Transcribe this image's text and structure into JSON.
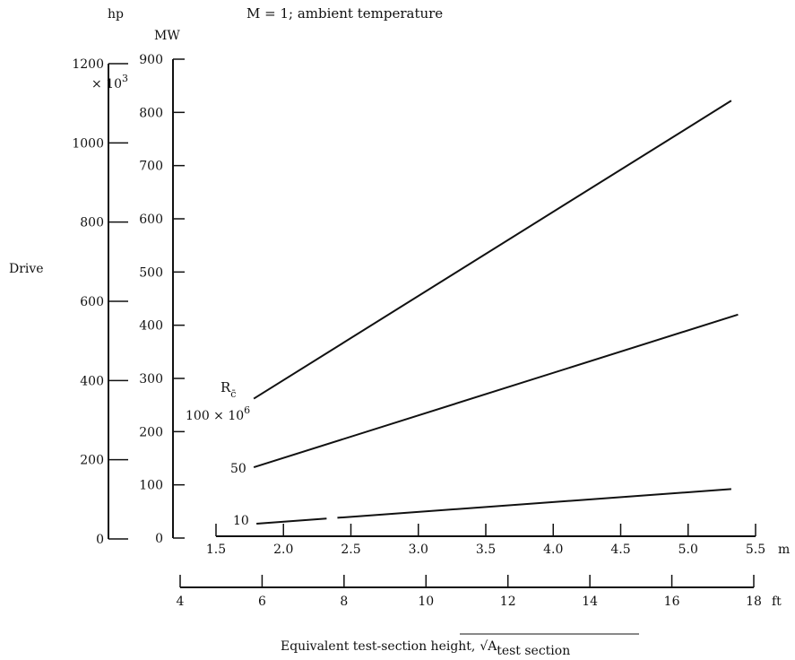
{
  "chart_data": {
    "type": "line",
    "title": "M = 1;  ambient temperature",
    "ylabel": "Drive",
    "y_axis_mw": {
      "unit": "MW",
      "range": [
        0,
        900
      ],
      "ticks": [
        "0",
        "100",
        "200",
        "300",
        "400",
        "500",
        "600",
        "700",
        "800",
        "900"
      ]
    },
    "y_axis_hp": {
      "unit": "hp",
      "multiplier": "× 10",
      "multiplier_exp": "3",
      "range": [
        0,
        1200
      ],
      "ticks": [
        "0",
        "200",
        "400",
        "600",
        "800",
        "1000",
        "1200"
      ]
    },
    "x_axis_m": {
      "unit": "m",
      "range": [
        1.5,
        5.5
      ],
      "ticks": [
        "1.5",
        "2.0",
        "2.5",
        "3.0",
        "3.5",
        "4.0",
        "4.5",
        "5.0",
        "5.5"
      ]
    },
    "x_axis_ft": {
      "unit": "ft",
      "range": [
        4,
        18
      ],
      "ticks": [
        "4",
        "6",
        "8",
        "10",
        "12",
        "14",
        "16",
        "18"
      ]
    },
    "xlabel": {
      "prefix": "Equivalent test-section height,",
      "root": "√A",
      "subscript": "test section"
    },
    "legend": {
      "symbol": "R",
      "symbol_sub": "c̄",
      "top_label": "100 × 10",
      "top_exp": "6"
    },
    "series": [
      {
        "name": "100 × 10⁶",
        "label": "100 × 10",
        "x": [
          1.78,
          5.32
        ],
        "y": [
          262,
          822
        ]
      },
      {
        "name": "50",
        "label": "50",
        "x": [
          1.78,
          5.37
        ],
        "y": [
          133,
          420
        ]
      },
      {
        "name": "10",
        "label": "10",
        "x": [
          1.8,
          5.32
        ],
        "y": [
          27,
          92
        ],
        "gap": [
          2.32,
          2.4
        ]
      }
    ]
  }
}
